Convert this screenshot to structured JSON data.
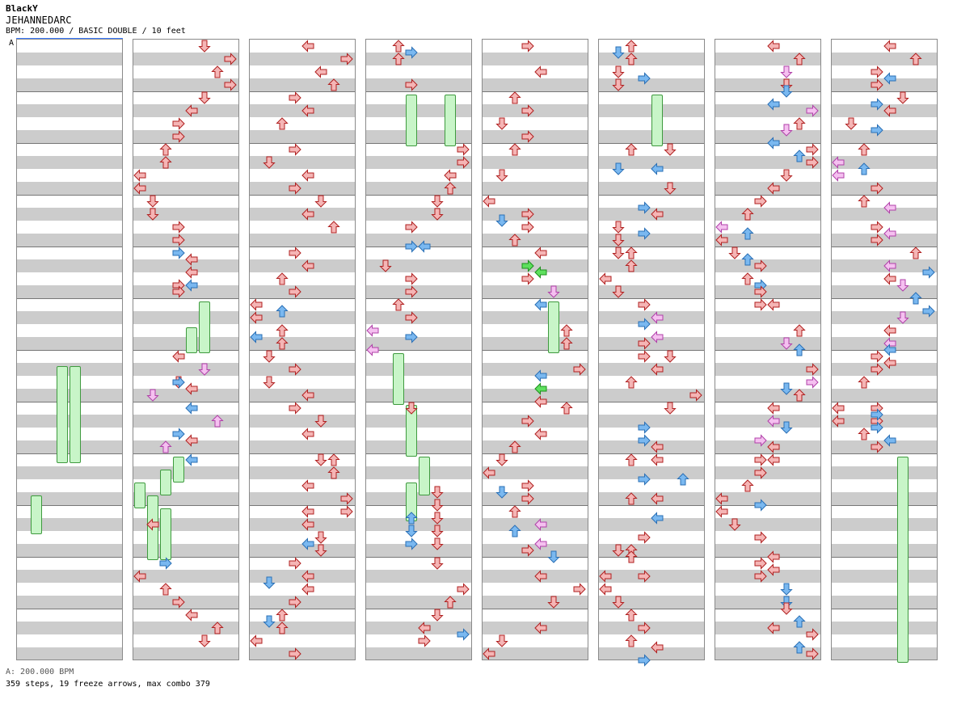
{
  "artist": "BlackY",
  "song_title": "JEHANNEDARC",
  "meta_line": "BPM: 200.000 / BASIC DOUBLE / 10 feet",
  "marker_label": "A",
  "footer": {
    "bpm_line": "A: 200.000 BPM",
    "stats_line": "359 steps, 19 freeze arrows, max combo 379"
  },
  "colors": {
    "red": "#f5b5b5",
    "blue": "#7ab8f0",
    "pink": "#f5c0f0",
    "green": "#5ee05e"
  },
  "arrow_icons": [
    "left-arrow-icon",
    "down-arrow-icon",
    "up-arrow-icon",
    "right-arrow-icon"
  ]
}
